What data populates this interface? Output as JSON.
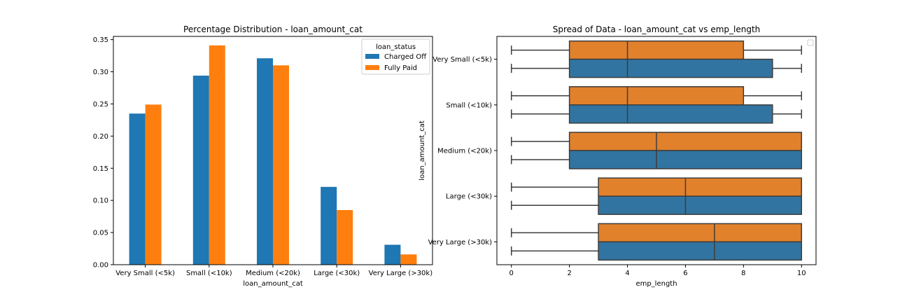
{
  "colors": {
    "charged_off": "#1f77b4",
    "fully_paid": "#ff7f0e",
    "box_blue": "#3274a1",
    "box_orange": "#e1812c",
    "box_line": "#3d3d3d"
  },
  "chart_data": [
    {
      "type": "bar",
      "title": "Percentage Distribution - loan_amount_cat",
      "xlabel": "loan_amount_cat",
      "ylabel": "",
      "categories": [
        "Very Small (<5k)",
        "Small (<10k)",
        "Medium (<20k)",
        "Large (<30k)",
        "Very Large (>30k)"
      ],
      "ylim": [
        0,
        0.355
      ],
      "yticks": [
        0.0,
        0.05,
        0.1,
        0.15,
        0.2,
        0.25,
        0.3,
        0.35
      ],
      "ytick_labels": [
        "0.00",
        "0.05",
        "0.10",
        "0.15",
        "0.20",
        "0.25",
        "0.30",
        "0.35"
      ],
      "legend": {
        "title": "loan_status",
        "placement": "top-right"
      },
      "series": [
        {
          "name": "Charged Off",
          "values": [
            0.235,
            0.294,
            0.321,
            0.121,
            0.031
          ]
        },
        {
          "name": "Fully Paid",
          "values": [
            0.249,
            0.341,
            0.31,
            0.085,
            0.016
          ]
        }
      ],
      "grid": false
    },
    {
      "type": "box",
      "title": "Spread of Data - loan_amount_cat vs emp_length",
      "xlabel": "emp_length",
      "ylabel": "loan_amount_cat",
      "categories": [
        "Very Small (<5k)",
        "Small (<10k)",
        "Medium (<20k)",
        "Large (<30k)",
        "Very Large (>30k)"
      ],
      "xlim": [
        -0.5,
        10.5
      ],
      "xticks": [
        0,
        2,
        4,
        6,
        8,
        10
      ],
      "legend": {
        "placement": "top-right",
        "entries": []
      },
      "series": [
        {
          "color_key": "fully_paid",
          "boxes": [
            {
              "whislo": 0,
              "q1": 2,
              "med": 4,
              "q3": 8,
              "whishi": 10
            },
            {
              "whislo": 0,
              "q1": 2,
              "med": 4,
              "q3": 8,
              "whishi": 10
            },
            {
              "whislo": 0,
              "q1": 2,
              "med": 5,
              "q3": 10,
              "whishi": 10
            },
            {
              "whislo": 0,
              "q1": 3,
              "med": 6,
              "q3": 10,
              "whishi": 10
            },
            {
              "whislo": 0,
              "q1": 3,
              "med": 7,
              "q3": 10,
              "whishi": 10
            }
          ]
        },
        {
          "color_key": "charged_off",
          "boxes": [
            {
              "whislo": 0,
              "q1": 2,
              "med": 4,
              "q3": 9,
              "whishi": 10
            },
            {
              "whislo": 0,
              "q1": 2,
              "med": 4,
              "q3": 9,
              "whishi": 10
            },
            {
              "whislo": 0,
              "q1": 2,
              "med": 5,
              "q3": 10,
              "whishi": 10
            },
            {
              "whislo": 0,
              "q1": 3,
              "med": 6,
              "q3": 10,
              "whishi": 10
            },
            {
              "whislo": 0,
              "q1": 3,
              "med": 7,
              "q3": 10,
              "whishi": 10
            }
          ]
        }
      ],
      "grid": false
    }
  ]
}
